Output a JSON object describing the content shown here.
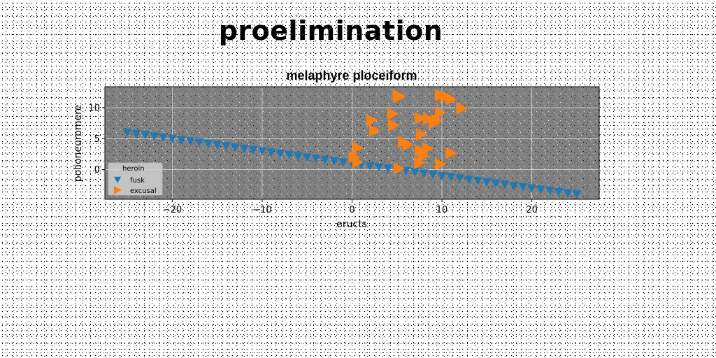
{
  "figure": {
    "suptitle": "proelimination"
  },
  "chart_data": {
    "type": "scatter",
    "title": "melaphyre ploceiform",
    "xlabel": "eructs",
    "ylabel": "polioneuromere",
    "xlim": [
      -27.5,
      27.5
    ],
    "ylim": [
      -4.8,
      13.4
    ],
    "xticks": [
      -20,
      -10,
      0,
      10,
      20
    ],
    "xtick_labels": [
      "−20",
      "−10",
      "0",
      "10",
      "20"
    ],
    "yticks": [
      0,
      5,
      10
    ],
    "ytick_labels": [
      "0",
      "5",
      "10"
    ],
    "grid": true,
    "legend": {
      "title": "heroin",
      "placement": "lower-left"
    },
    "series": [
      {
        "name": "fusk",
        "marker": "triangle-down",
        "color": "#1f77b4",
        "points": [
          [
            -25.0,
            6.0
          ],
          [
            -24.0,
            5.8
          ],
          [
            -23.0,
            5.6
          ],
          [
            -22.0,
            5.4
          ],
          [
            -21.0,
            5.2
          ],
          [
            -20.0,
            5.0
          ],
          [
            -19.0,
            4.8
          ],
          [
            -18.0,
            4.6
          ],
          [
            -17.0,
            4.4
          ],
          [
            -16.0,
            4.2
          ],
          [
            -15.0,
            4.0
          ],
          [
            -14.0,
            3.8
          ],
          [
            -13.0,
            3.6
          ],
          [
            -12.0,
            3.4
          ],
          [
            -11.0,
            3.2
          ],
          [
            -10.0,
            3.0
          ],
          [
            -9.0,
            2.8
          ],
          [
            -8.0,
            2.6
          ],
          [
            -7.0,
            2.4
          ],
          [
            -6.0,
            2.2
          ],
          [
            -5.0,
            2.0
          ],
          [
            -4.0,
            1.8
          ],
          [
            -3.0,
            1.6
          ],
          [
            -2.0,
            1.4
          ],
          [
            -1.0,
            1.2
          ],
          [
            0.0,
            1.0
          ],
          [
            1.0,
            0.8
          ],
          [
            2.0,
            0.6
          ],
          [
            3.0,
            0.4
          ],
          [
            4.0,
            0.2
          ],
          [
            5.0,
            0.0
          ],
          [
            6.0,
            -0.2
          ],
          [
            7.0,
            -0.4
          ],
          [
            8.0,
            -0.6
          ],
          [
            9.0,
            -0.8
          ],
          [
            10.0,
            -1.0
          ],
          [
            11.0,
            -1.2
          ],
          [
            12.0,
            -1.4
          ],
          [
            13.0,
            -1.6
          ],
          [
            14.0,
            -1.8
          ],
          [
            15.0,
            -2.0
          ],
          [
            16.0,
            -2.2
          ],
          [
            17.0,
            -2.4
          ],
          [
            18.0,
            -2.6
          ],
          [
            19.0,
            -2.8
          ],
          [
            20.0,
            -3.0
          ],
          [
            21.0,
            -3.2
          ],
          [
            22.0,
            -3.4
          ],
          [
            23.0,
            -3.6
          ],
          [
            24.0,
            -3.8
          ],
          [
            25.0,
            -4.0
          ]
        ]
      },
      {
        "name": "excusal",
        "marker": "triangle-right",
        "color": "#ff7f0e",
        "points": [
          [
            5.1,
            12.0
          ],
          [
            5.3,
            11.8
          ],
          [
            9.8,
            12.0
          ],
          [
            10.4,
            11.8
          ],
          [
            11.0,
            11.4
          ],
          [
            12.2,
            9.9
          ],
          [
            9.8,
            9.2
          ],
          [
            4.5,
            9.0
          ],
          [
            8.5,
            8.2
          ],
          [
            7.6,
            8.3
          ],
          [
            9.4,
            8.0
          ],
          [
            2.2,
            8.0
          ],
          [
            9.1,
            7.5
          ],
          [
            4.6,
            7.2
          ],
          [
            2.5,
            6.3
          ],
          [
            7.7,
            5.7
          ],
          [
            5.7,
            4.5
          ],
          [
            6.2,
            4.0
          ],
          [
            8.4,
            3.4
          ],
          [
            0.6,
            3.5
          ],
          [
            7.6,
            3.1
          ],
          [
            11.0,
            2.7
          ],
          [
            7.9,
            2.2
          ],
          [
            0.2,
            2.0
          ],
          [
            0.6,
            1.2
          ],
          [
            7.5,
            1.1
          ],
          [
            9.8,
            0.9
          ],
          [
            5.2,
            0.2
          ]
        ]
      }
    ]
  }
}
